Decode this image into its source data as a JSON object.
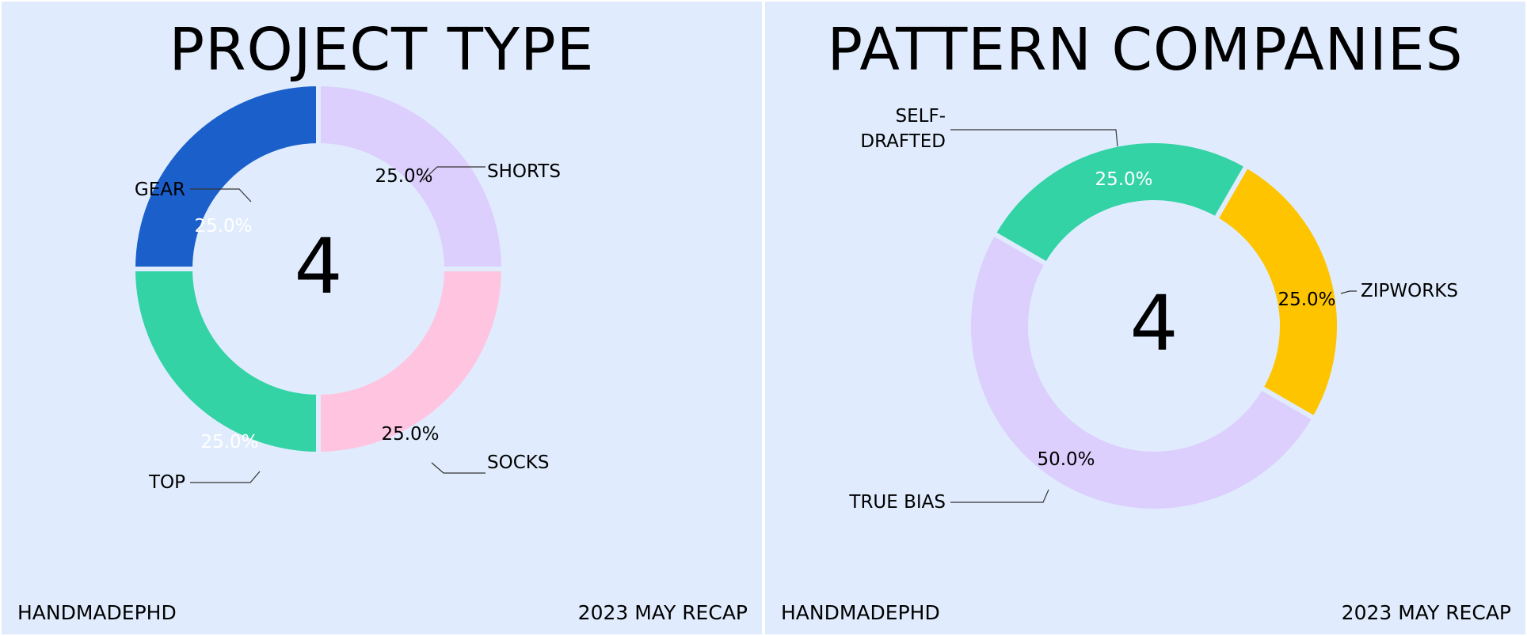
{
  "footer": {
    "left": "HANDMADEPHD",
    "right": "2023 MAY RECAP"
  },
  "chart_data": [
    {
      "type": "pie",
      "title": "PROJECT TYPE",
      "center_label": "4",
      "slices": [
        {
          "label": "SHORTS",
          "value": 25.0,
          "pct_label": "25.0%",
          "color": "#dccefd"
        },
        {
          "label": "SOCKS",
          "value": 25.0,
          "pct_label": "25.0%",
          "color": "#ffc4df"
        },
        {
          "label": "TOP",
          "value": 25.0,
          "pct_label": "25.0%",
          "color": "#33d3a5"
        },
        {
          "label": "GEAR",
          "value": 25.0,
          "pct_label": "25.0%",
          "color": "#1b5fcb"
        }
      ]
    },
    {
      "type": "pie",
      "title": "PATTERN COMPANIES",
      "center_label": "4",
      "slices": [
        {
          "label": "ZIPWORKS",
          "value": 25.0,
          "pct_label": "25.0%",
          "color": "#fec400"
        },
        {
          "label": "TRUE BIAS",
          "value": 50.0,
          "pct_label": "50.0%",
          "color": "#dccefd"
        },
        {
          "label": "SELF-\nDRAFTED",
          "value": 25.0,
          "pct_label": "25.0%",
          "color": "#33d3a5"
        }
      ]
    }
  ]
}
